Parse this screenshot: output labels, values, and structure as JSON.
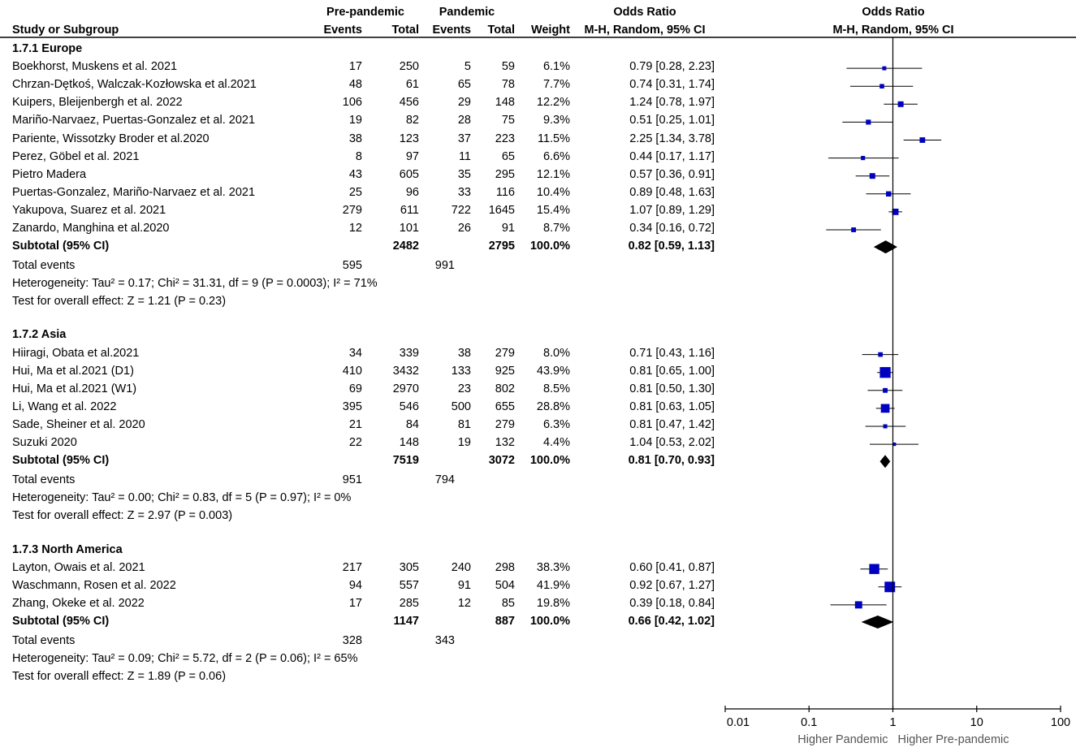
{
  "header": {
    "study_col": "Study or Subgroup",
    "group1": "Pre-pandemic",
    "group2": "Pandemic",
    "events": "Events",
    "total": "Total",
    "weight": "Weight",
    "or_title": "Odds Ratio",
    "or_method": "M-H, Random, 95% CI",
    "plot_title": "Odds Ratio",
    "plot_method": "M-H, Random, 95% CI"
  },
  "chart_data": {
    "type": "forest",
    "xscale": "log",
    "xlim": [
      0.01,
      100
    ],
    "ticks": [
      "0.01",
      "0.1",
      "1",
      "10",
      "100"
    ],
    "tick_values": [
      0.01,
      0.1,
      1,
      10,
      100
    ],
    "xlabel_left": "Higher Pandemic",
    "xlabel_right": "Higher Pre-pandemic",
    "groups": [
      {
        "title": "1.7.1 Europe",
        "studies": [
          {
            "name": "Boekhorst, Muskens et al. 2021",
            "e1": "17",
            "t1": "250",
            "e2": "5",
            "t2": "59",
            "weight": "6.1%",
            "ci": "0.79 [0.28, 2.23]",
            "or": 0.79,
            "lo": 0.28,
            "hi": 2.23,
            "w": 6.1
          },
          {
            "name": "Chrzan-Dętkoś, Walczak-Kozłowska et al.2021",
            "e1": "48",
            "t1": "61",
            "e2": "65",
            "t2": "78",
            "weight": "7.7%",
            "ci": "0.74 [0.31, 1.74]",
            "or": 0.74,
            "lo": 0.31,
            "hi": 1.74,
            "w": 7.7
          },
          {
            "name": "Kuipers, Bleijenbergh et al. 2022",
            "e1": "106",
            "t1": "456",
            "e2": "29",
            "t2": "148",
            "weight": "12.2%",
            "ci": "1.24 [0.78, 1.97]",
            "or": 1.24,
            "lo": 0.78,
            "hi": 1.97,
            "w": 12.2
          },
          {
            "name": "Mariño-Narvaez, Puertas-Gonzalez et al. 2021",
            "e1": "19",
            "t1": "82",
            "e2": "28",
            "t2": "75",
            "weight": "9.3%",
            "ci": "0.51 [0.25, 1.01]",
            "or": 0.51,
            "lo": 0.25,
            "hi": 1.01,
            "w": 9.3
          },
          {
            "name": "Pariente, Wissotzky Broder et al.2020",
            "e1": "38",
            "t1": "123",
            "e2": "37",
            "t2": "223",
            "weight": "11.5%",
            "ci": "2.25 [1.34, 3.78]",
            "or": 2.25,
            "lo": 1.34,
            "hi": 3.78,
            "w": 11.5
          },
          {
            "name": "Perez, Göbel et al. 2021",
            "e1": "8",
            "t1": "97",
            "e2": "11",
            "t2": "65",
            "weight": "6.6%",
            "ci": "0.44 [0.17, 1.17]",
            "or": 0.44,
            "lo": 0.17,
            "hi": 1.17,
            "w": 6.6
          },
          {
            "name": "Pietro Madera",
            "e1": "43",
            "t1": "605",
            "e2": "35",
            "t2": "295",
            "weight": "12.1%",
            "ci": "0.57 [0.36, 0.91]",
            "or": 0.57,
            "lo": 0.36,
            "hi": 0.91,
            "w": 12.1
          },
          {
            "name": "Puertas-Gonzalez, Mariño-Narvaez et al. 2021",
            "e1": "25",
            "t1": "96",
            "e2": "33",
            "t2": "116",
            "weight": "10.4%",
            "ci": "0.89 [0.48, 1.63]",
            "or": 0.89,
            "lo": 0.48,
            "hi": 1.63,
            "w": 10.4
          },
          {
            "name": "Yakupova, Suarez et al. 2021",
            "e1": "279",
            "t1": "611",
            "e2": "722",
            "t2": "1645",
            "weight": "15.4%",
            "ci": "1.07 [0.89, 1.29]",
            "or": 1.07,
            "lo": 0.89,
            "hi": 1.29,
            "w": 15.4
          },
          {
            "name": "Zanardo, Manghina et al.2020",
            "e1": "12",
            "t1": "101",
            "e2": "26",
            "t2": "91",
            "weight": "8.7%",
            "ci": "0.34 [0.16, 0.72]",
            "or": 0.34,
            "lo": 0.16,
            "hi": 0.72,
            "w": 8.7
          }
        ],
        "subtotal": {
          "label": "Subtotal (95% CI)",
          "t1": "2482",
          "t2": "2795",
          "weight": "100.0%",
          "ci": "0.82 [0.59, 1.13]",
          "or": 0.82,
          "lo": 0.59,
          "hi": 1.13
        },
        "total_events": {
          "label": "Total events",
          "e1": "595",
          "e2": "991"
        },
        "heterogeneity": "Heterogeneity: Tau² = 0.17; Chi² = 31.31, df = 9 (P = 0.0003); I² = 71%",
        "overall": "Test for overall effect: Z = 1.21 (P = 0.23)"
      },
      {
        "title": "1.7.2 Asia",
        "studies": [
          {
            "name": "Hiiragi, Obata et al.2021",
            "e1": "34",
            "t1": "339",
            "e2": "38",
            "t2": "279",
            "weight": "8.0%",
            "ci": "0.71 [0.43, 1.16]",
            "or": 0.71,
            "lo": 0.43,
            "hi": 1.16,
            "w": 8.0
          },
          {
            "name": "Hui, Ma et al.2021 (D1)",
            "e1": "410",
            "t1": "3432",
            "e2": "133",
            "t2": "925",
            "weight": "43.9%",
            "ci": "0.81 [0.65, 1.00]",
            "or": 0.81,
            "lo": 0.65,
            "hi": 1.0,
            "w": 43.9
          },
          {
            "name": "Hui, Ma et al.2021 (W1)",
            "e1": "69",
            "t1": "2970",
            "e2": "23",
            "t2": "802",
            "weight": "8.5%",
            "ci": "0.81 [0.50, 1.30]",
            "or": 0.81,
            "lo": 0.5,
            "hi": 1.3,
            "w": 8.5
          },
          {
            "name": "Li, Wang et al. 2022",
            "e1": "395",
            "t1": "546",
            "e2": "500",
            "t2": "655",
            "weight": "28.8%",
            "ci": "0.81 [0.63, 1.05]",
            "or": 0.81,
            "lo": 0.63,
            "hi": 1.05,
            "w": 28.8
          },
          {
            "name": "Sade, Sheiner et al. 2020",
            "e1": "21",
            "t1": "84",
            "e2": "81",
            "t2": "279",
            "weight": "6.3%",
            "ci": "0.81 [0.47, 1.42]",
            "or": 0.81,
            "lo": 0.47,
            "hi": 1.42,
            "w": 6.3
          },
          {
            "name": "Suzuki 2020",
            "e1": "22",
            "t1": "148",
            "e2": "19",
            "t2": "132",
            "weight": "4.4%",
            "ci": "1.04 [0.53, 2.02]",
            "or": 1.04,
            "lo": 0.53,
            "hi": 2.02,
            "w": 4.4
          }
        ],
        "subtotal": {
          "label": "Subtotal (95% CI)",
          "t1": "7519",
          "t2": "3072",
          "weight": "100.0%",
          "ci": "0.81 [0.70, 0.93]",
          "or": 0.81,
          "lo": 0.7,
          "hi": 0.93
        },
        "total_events": {
          "label": "Total events",
          "e1": "951",
          "e2": "794"
        },
        "heterogeneity": "Heterogeneity: Tau² = 0.00; Chi² = 0.83, df = 5 (P = 0.97); I² = 0%",
        "overall": "Test for overall effect: Z = 2.97 (P = 0.003)"
      },
      {
        "title": "1.7.3 North America",
        "studies": [
          {
            "name": "Layton, Owais et al. 2021",
            "e1": "217",
            "t1": "305",
            "e2": "240",
            "t2": "298",
            "weight": "38.3%",
            "ci": "0.60 [0.41, 0.87]",
            "or": 0.6,
            "lo": 0.41,
            "hi": 0.87,
            "w": 38.3
          },
          {
            "name": "Waschmann, Rosen et al. 2022",
            "e1": "94",
            "t1": "557",
            "e2": "91",
            "t2": "504",
            "weight": "41.9%",
            "ci": "0.92 [0.67, 1.27]",
            "or": 0.92,
            "lo": 0.67,
            "hi": 1.27,
            "w": 41.9
          },
          {
            "name": "Zhang, Okeke et al. 2022",
            "e1": "17",
            "t1": "285",
            "e2": "12",
            "t2": "85",
            "weight": "19.8%",
            "ci": "0.39 [0.18, 0.84]",
            "or": 0.39,
            "lo": 0.18,
            "hi": 0.84,
            "w": 19.8
          }
        ],
        "subtotal": {
          "label": "Subtotal (95% CI)",
          "t1": "1147",
          "t2": "887",
          "weight": "100.0%",
          "ci": "0.66 [0.42, 1.02]",
          "or": 0.66,
          "lo": 0.42,
          "hi": 1.02
        },
        "total_events": {
          "label": "Total events",
          "e1": "328",
          "e2": "343"
        },
        "heterogeneity": "Heterogeneity: Tau² = 0.09; Chi² = 5.72, df = 2 (P = 0.06); I² = 65%",
        "overall": "Test for overall effect: Z = 1.89 (P = 0.06)"
      }
    ]
  },
  "colors": {
    "square": "#0000c0",
    "diamond": "#000000",
    "line": "#000000"
  }
}
